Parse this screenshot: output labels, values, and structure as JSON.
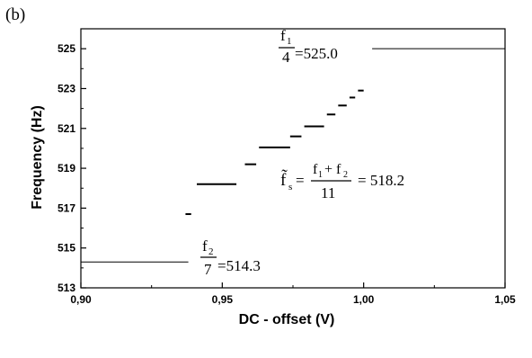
{
  "panel_label": "(b)",
  "chart_data": {
    "type": "line",
    "xlabel": "DC - offset  (V)",
    "ylabel": "Frequency  (Hz)",
    "xlim": [
      0.9,
      1.05
    ],
    "ylim": [
      513,
      526
    ],
    "xticks": [
      {
        "value": 0.9,
        "label": "0,90"
      },
      {
        "value": 0.95,
        "label": "0,95"
      },
      {
        "value": 1.0,
        "label": "1,00"
      },
      {
        "value": 1.05,
        "label": "1,05"
      }
    ],
    "yticks": [
      {
        "value": 513,
        "label": "513"
      },
      {
        "value": 515,
        "label": "515"
      },
      {
        "value": 517,
        "label": "517"
      },
      {
        "value": 519,
        "label": "519"
      },
      {
        "value": 521,
        "label": "521"
      },
      {
        "value": 523,
        "label": "523"
      },
      {
        "value": 525,
        "label": "525"
      }
    ],
    "grid": false,
    "steps": [
      {
        "x_start": 0.9,
        "x_end": 0.938,
        "y": 514.3,
        "weight": "thin"
      },
      {
        "x_start": 0.937,
        "x_end": 0.939,
        "y": 516.7,
        "weight": "thick"
      },
      {
        "x_start": 0.941,
        "x_end": 0.955,
        "y": 518.2,
        "weight": "thick"
      },
      {
        "x_start": 0.958,
        "x_end": 0.962,
        "y": 519.2,
        "weight": "thick"
      },
      {
        "x_start": 0.963,
        "x_end": 0.974,
        "y": 520.05,
        "weight": "thick"
      },
      {
        "x_start": 0.974,
        "x_end": 0.978,
        "y": 520.6,
        "weight": "thick"
      },
      {
        "x_start": 0.979,
        "x_end": 0.986,
        "y": 521.1,
        "weight": "thick"
      },
      {
        "x_start": 0.987,
        "x_end": 0.99,
        "y": 521.7,
        "weight": "thick"
      },
      {
        "x_start": 0.991,
        "x_end": 0.994,
        "y": 522.15,
        "weight": "thick"
      },
      {
        "x_start": 0.995,
        "x_end": 0.997,
        "y": 522.55,
        "weight": "thick"
      },
      {
        "x_start": 0.998,
        "x_end": 1.0,
        "y": 522.9,
        "weight": "thick"
      },
      {
        "x_start": 1.003,
        "x_end": 1.05,
        "y": 525.0,
        "weight": "thin"
      }
    ],
    "annotations": [
      {
        "id": "f1",
        "numerator": "f",
        "numerator_sub": "1",
        "denominator": "4",
        "value_text": "=525.0"
      },
      {
        "id": "f2",
        "numerator": "f",
        "numerator_sub": "2",
        "denominator": "7",
        "value_text": "=514.3"
      },
      {
        "id": "fs",
        "lhs": "f̃",
        "lhs_sub": "s",
        "equals": "=",
        "num_a": "f",
        "num_a_sub": "1",
        "plus": "+ f",
        "num_b_sub": "2",
        "denominator": "11",
        "value_text": "= 518.2"
      }
    ]
  }
}
